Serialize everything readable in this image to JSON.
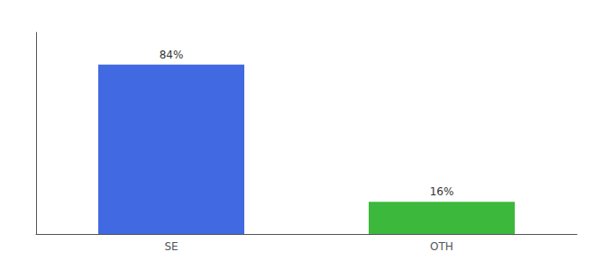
{
  "chart_data": {
    "type": "bar",
    "categories": [
      "SE",
      "OTH"
    ],
    "values": [
      84,
      16
    ],
    "value_labels": [
      "84%",
      "16%"
    ],
    "colors": [
      "#4169e1",
      "#3cb83c"
    ],
    "ylim": [
      0,
      100
    ],
    "grid": false,
    "data_labels": true,
    "tick_labels": "x"
  }
}
